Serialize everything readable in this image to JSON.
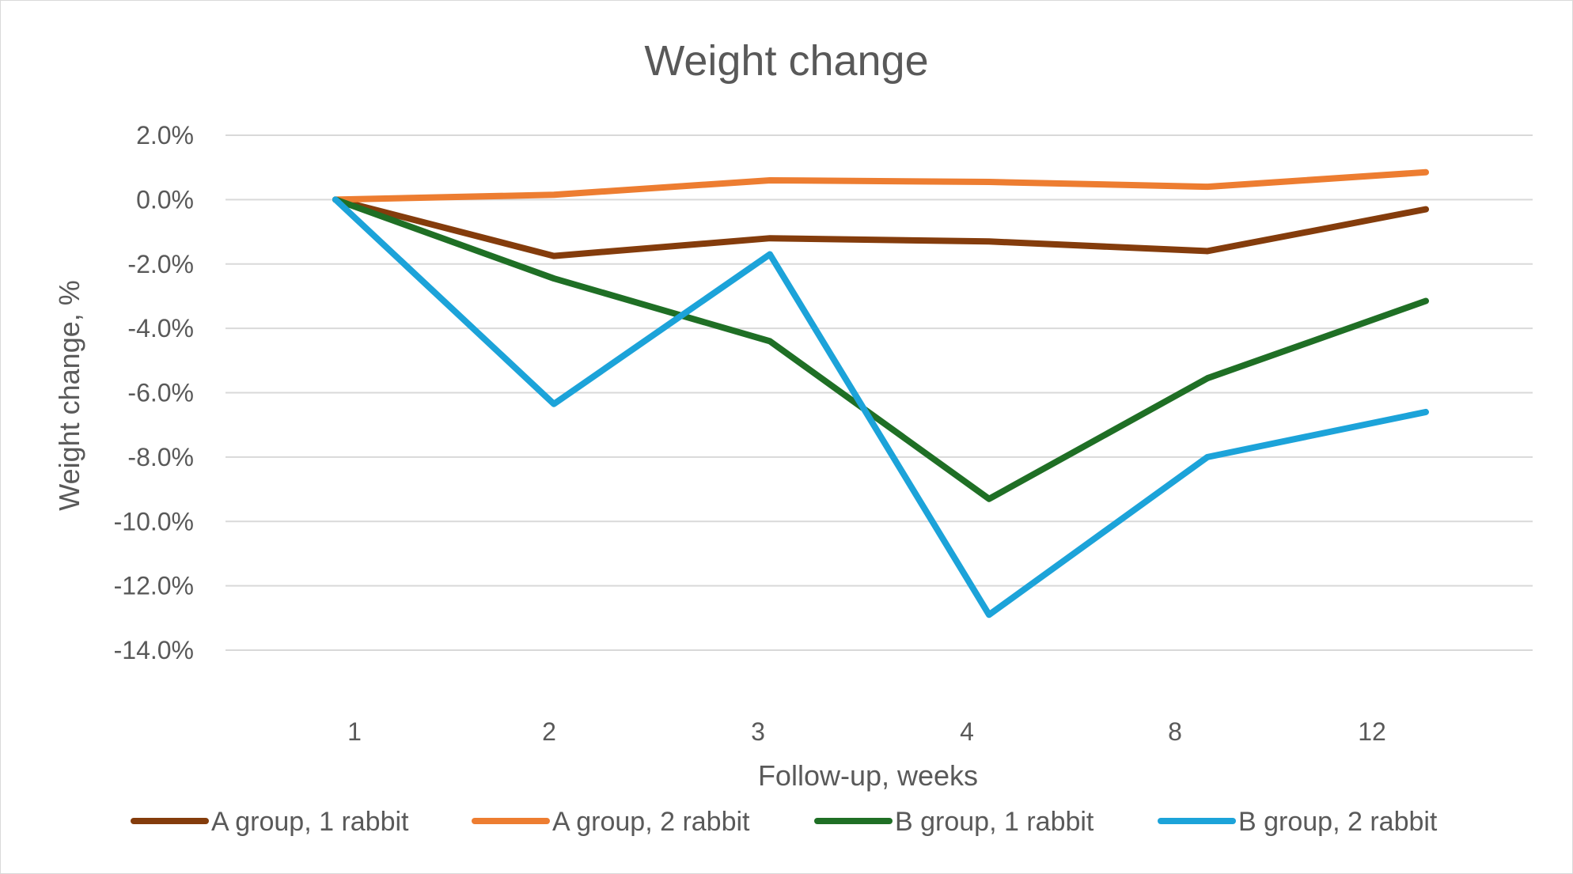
{
  "chart_data": {
    "type": "line",
    "title": "Weight change",
    "xlabel": "Follow-up, weeks",
    "ylabel": "Weight change, %",
    "categories": [
      "1",
      "2",
      "3",
      "4",
      "8",
      "12"
    ],
    "ylim": [
      -14,
      2
    ],
    "yticks": [
      "2.0%",
      "0.0%",
      "-2.0%",
      "-4.0%",
      "-6.0%",
      "-8.0%",
      "-10.0%",
      "-12.0%",
      "-14.0%"
    ],
    "grid": true,
    "legend": "bottom",
    "series": [
      {
        "name": "A group, 1 rabbit",
        "color": "#843c0c",
        "values": [
          0.0,
          -1.75,
          -1.2,
          -1.3,
          -1.6,
          -0.3
        ]
      },
      {
        "name": "A group, 2 rabbit",
        "color": "#ed7d31",
        "values": [
          0.0,
          0.15,
          0.6,
          0.55,
          0.4,
          0.85
        ]
      },
      {
        "name": "B group, 1 rabbit",
        "color": "#1f6f25",
        "values": [
          0.0,
          -2.45,
          -4.4,
          -9.3,
          -5.55,
          -3.15
        ]
      },
      {
        "name": "B group, 2 rabbit",
        "color": "#1ca3d9",
        "values": [
          0.0,
          -6.35,
          -1.7,
          -12.9,
          -8.0,
          -6.6
        ]
      }
    ]
  }
}
